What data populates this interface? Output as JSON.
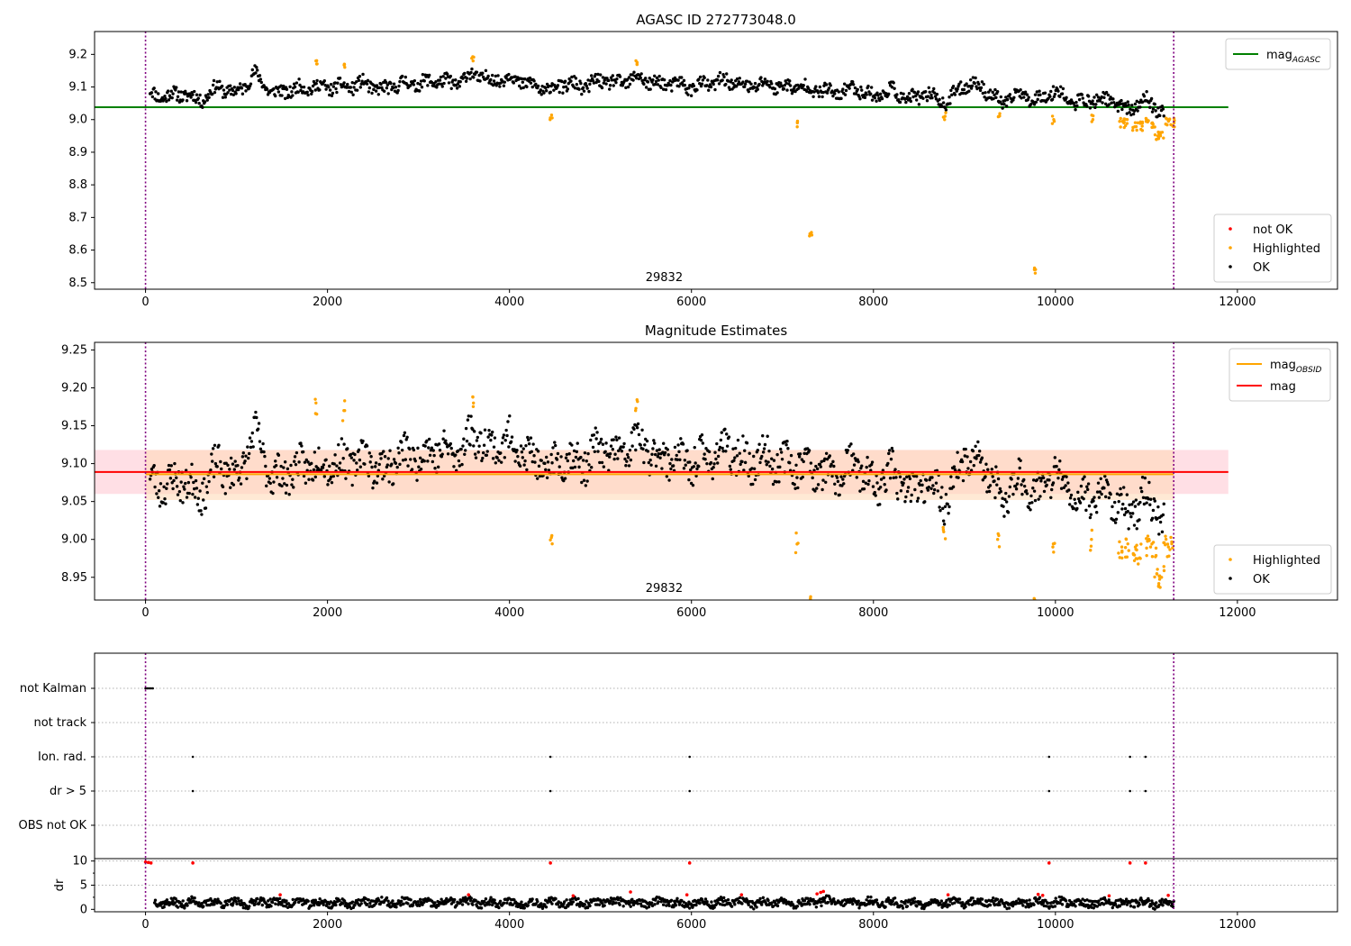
{
  "colors": {
    "ok": "#000000",
    "highlighted": "#ffa500",
    "not_ok": "#ff0000",
    "agasc_line": "#008000",
    "mag_line": "#ff0000",
    "obsid_line": "#ffa500",
    "obsid_band": "#ffdab9",
    "mag_band": "#ffc0cb",
    "vline": "#800080",
    "grid": "#b0b0b0"
  },
  "chart_data": [
    {
      "id": "agasc",
      "type": "scatter",
      "title": "AGASC ID 272773048.0",
      "xlim": [
        -560,
        13100
      ],
      "ylim": [
        8.48,
        9.27
      ],
      "xticks": [
        0,
        2000,
        4000,
        6000,
        8000,
        10000,
        12000
      ],
      "yticks": [
        8.5,
        8.6,
        8.7,
        8.8,
        8.9,
        9.0,
        9.1,
        9.2
      ],
      "ytick_labels": [
        "8.5",
        "8.6",
        "8.7",
        "8.8",
        "8.9",
        "9.0",
        "9.1",
        "9.2"
      ],
      "hline": {
        "label": "mag",
        "label_sub": "AGASC",
        "y": 9.038,
        "x": [
          -560,
          11900
        ]
      },
      "vlines": [
        0,
        11300
      ],
      "annotation": {
        "text": "29832",
        "x": 5700,
        "y": 8.51
      },
      "legend_lines": [
        {
          "label": "mag",
          "sub": "AGASC",
          "color": "#008000"
        }
      ],
      "legend_points": [
        {
          "label": "not OK",
          "color": "#ff0000"
        },
        {
          "label": "Highlighted",
          "color": "#ffa500"
        },
        {
          "label": "OK",
          "color": "#000000"
        }
      ],
      "series": [
        {
          "name": "OK",
          "color": "#000000",
          "x": [
            50,
            200,
            400,
            600,
            800,
            1000,
            1200,
            1400,
            1600,
            1800,
            2000,
            2200,
            2400,
            2600,
            2800,
            3000,
            3200,
            3400,
            3600,
            3800,
            4000,
            4200,
            4400,
            4600,
            4800,
            5000,
            5200,
            5400,
            5600,
            5800,
            6000,
            6200,
            6400,
            6600,
            6800,
            7000,
            7200,
            7400,
            7600,
            7800,
            8000,
            8200,
            8400,
            8600,
            8800,
            9000,
            9200,
            9400,
            9600,
            9800,
            10000,
            10200,
            10400,
            10600,
            10800,
            11000,
            11200
          ],
          "y": [
            9.08,
            9.07,
            9.08,
            9.06,
            9.1,
            9.08,
            9.14,
            9.08,
            9.09,
            9.1,
            9.1,
            9.1,
            9.11,
            9.09,
            9.11,
            9.11,
            9.12,
            9.11,
            9.14,
            9.12,
            9.13,
            9.11,
            9.09,
            9.11,
            9.1,
            9.12,
            9.11,
            9.13,
            9.11,
            9.11,
            9.1,
            9.11,
            9.12,
            9.1,
            9.11,
            9.1,
            9.1,
            9.09,
            9.08,
            9.1,
            9.07,
            9.09,
            9.06,
            9.08,
            9.05,
            9.11,
            9.1,
            9.05,
            9.08,
            9.06,
            9.09,
            9.05,
            9.06,
            9.06,
            9.03,
            9.06,
            9.02
          ]
        },
        {
          "name": "Highlighted",
          "color": "#ffa500",
          "x": [
            1880,
            2180,
            3600,
            4460,
            5400,
            7160,
            7310,
            8780,
            9380,
            9770,
            9980,
            10400,
            10750,
            10900,
            11050,
            11150,
            11250
          ],
          "y": [
            9.18,
            9.17,
            9.18,
            9.0,
            9.17,
            8.99,
            8.65,
            9.01,
            9.01,
            8.54,
            9.0,
            9.0,
            8.99,
            8.98,
            8.99,
            8.95,
            8.99
          ]
        }
      ]
    },
    {
      "id": "estimates",
      "type": "scatter",
      "title": "Magnitude Estimates",
      "xlim": [
        -560,
        13100
      ],
      "ylim": [
        8.92,
        9.26
      ],
      "xticks": [
        0,
        2000,
        4000,
        6000,
        8000,
        10000,
        12000
      ],
      "yticks": [
        8.95,
        9.0,
        9.05,
        9.1,
        9.15,
        9.2,
        9.25
      ],
      "ytick_labels": [
        "8.95",
        "9.00",
        "9.05",
        "9.10",
        "9.15",
        "9.20",
        "9.25"
      ],
      "mag_band": {
        "low": 9.06,
        "high": 9.118,
        "x": [
          -560,
          11900
        ]
      },
      "obsid_band": {
        "low": 9.052,
        "high": 9.118,
        "x": [
          0,
          11300
        ]
      },
      "mag_line": {
        "label": "mag",
        "y": 9.089,
        "x": [
          -560,
          11900
        ]
      },
      "obsid_line": {
        "label": "mag",
        "label_sub": "OBSID",
        "y": 9.086,
        "x": [
          0,
          11300
        ]
      },
      "vlines": [
        0,
        11300
      ],
      "annotation": {
        "text": "29832",
        "x": 5700,
        "y": 8.93
      },
      "legend_lines": [
        {
          "label": "mag",
          "sub": "OBSID",
          "color": "#ffa500"
        },
        {
          "label": "mag",
          "sub": "",
          "color": "#ff0000"
        }
      ],
      "legend_points": [
        {
          "label": "Highlighted",
          "color": "#ffa500"
        },
        {
          "label": "OK",
          "color": "#000000"
        }
      ],
      "series": [
        {
          "name": "OK",
          "color": "#000000",
          "x": [
            50,
            200,
            400,
            600,
            800,
            1000,
            1200,
            1400,
            1600,
            1800,
            2000,
            2200,
            2400,
            2600,
            2800,
            3000,
            3200,
            3400,
            3600,
            3800,
            4000,
            4200,
            4400,
            4600,
            4800,
            5000,
            5200,
            5400,
            5600,
            5800,
            6000,
            6200,
            6400,
            6600,
            6800,
            7000,
            7200,
            7400,
            7600,
            7800,
            8000,
            8200,
            8400,
            8600,
            8800,
            9000,
            9200,
            9400,
            9600,
            9800,
            10000,
            10200,
            10400,
            10600,
            10800,
            11000,
            11200
          ],
          "y": [
            9.08,
            9.07,
            9.08,
            9.06,
            9.1,
            9.08,
            9.14,
            9.08,
            9.09,
            9.1,
            9.1,
            9.1,
            9.11,
            9.09,
            9.11,
            9.11,
            9.12,
            9.11,
            9.14,
            9.12,
            9.13,
            9.11,
            9.09,
            9.11,
            9.1,
            9.12,
            9.11,
            9.13,
            9.11,
            9.11,
            9.1,
            9.11,
            9.12,
            9.1,
            9.11,
            9.1,
            9.1,
            9.09,
            9.08,
            9.1,
            9.07,
            9.09,
            9.06,
            9.08,
            9.05,
            9.11,
            9.1,
            9.05,
            9.08,
            9.06,
            9.09,
            9.05,
            9.06,
            9.06,
            9.03,
            9.06,
            9.02
          ]
        },
        {
          "name": "Highlighted",
          "color": "#ffa500",
          "x": [
            1880,
            2180,
            3600,
            4460,
            5400,
            7160,
            7310,
            8780,
            9380,
            9770,
            9980,
            10400,
            10750,
            10900,
            11050,
            11150,
            11250
          ],
          "y": [
            9.18,
            9.17,
            9.18,
            9.005,
            9.17,
            8.995,
            8.922,
            9.01,
            9.0,
            8.922,
            8.99,
            9.0,
            8.99,
            8.98,
            8.99,
            8.95,
            8.99
          ]
        }
      ]
    },
    {
      "id": "flags",
      "type": "scatter",
      "xlim": [
        -560,
        13100
      ],
      "categories": [
        "not Kalman",
        "not track",
        "Ion. rad.",
        "dr > 5",
        "OBS not OK"
      ],
      "vlines": [
        0,
        11300
      ],
      "flag_points": [
        {
          "category": "not Kalman",
          "x": [
            0,
            20,
            40,
            60,
            80
          ]
        },
        {
          "category": "Ion. rad.",
          "x": [
            520,
            4450,
            5980,
            9930,
            10820,
            10990
          ]
        },
        {
          "category": "dr > 5",
          "x": [
            520,
            4450,
            5980,
            9930,
            10820,
            10990
          ]
        }
      ]
    },
    {
      "id": "dr",
      "type": "scatter",
      "ylabel": "dr",
      "xlim": [
        -560,
        13100
      ],
      "ylim": [
        -0.5,
        10.5
      ],
      "xticks": [
        0,
        2000,
        4000,
        6000,
        8000,
        10000,
        12000
      ],
      "yticks": [
        0,
        5,
        10
      ],
      "ytick_labels": [
        "0",
        "5",
        "10"
      ],
      "vlines": [
        0,
        11300
      ],
      "series": [
        {
          "name": "OK",
          "color": "#000000",
          "x": [
            100,
            300,
            500,
            700,
            900,
            1100,
            1300,
            1500,
            1700,
            1900,
            2100,
            2300,
            2500,
            2700,
            2900,
            3100,
            3300,
            3500,
            3700,
            3900,
            4100,
            4300,
            4500,
            4700,
            4900,
            5100,
            5300,
            5500,
            5700,
            5900,
            6100,
            6300,
            6500,
            6700,
            6900,
            7100,
            7300,
            7500,
            7700,
            7900,
            8100,
            8300,
            8500,
            8700,
            8900,
            9100,
            9300,
            9500,
            9700,
            9900,
            10100,
            10300,
            10500,
            10700,
            10900,
            11100,
            11300
          ],
          "y": [
            1.6,
            1.2,
            1.5,
            1.3,
            1.4,
            1.1,
            1.7,
            1.3,
            1.5,
            1.2,
            1.4,
            1.1,
            1.6,
            1.3,
            1.5,
            1.2,
            1.4,
            1.6,
            1.3,
            1.5,
            1.2,
            1.4,
            1.3,
            1.5,
            1.2,
            1.6,
            1.4,
            1.3,
            1.5,
            1.2,
            1.4,
            1.3,
            1.6,
            1.2,
            1.5,
            1.3,
            1.4,
            1.7,
            1.2,
            1.5,
            1.3,
            1.4,
            1.2,
            1.6,
            1.3,
            1.5,
            1.4,
            1.2,
            1.6,
            1.3,
            1.5,
            1.2,
            1.4,
            1.3,
            1.5,
            1.2,
            1.4
          ]
        },
        {
          "name": "not OK",
          "color": "#ff0000",
          "x": [
            0,
            30,
            60,
            520,
            4450,
            5980,
            9930,
            10820,
            10990,
            1480,
            3550,
            4700,
            5330,
            5950,
            6550,
            7380,
            7420,
            7450,
            8820,
            9810,
            9860,
            10590,
            11240
          ],
          "y": [
            9.8,
            9.7,
            9.6,
            9.6,
            9.6,
            9.6,
            9.6,
            9.6,
            9.6,
            3.0,
            3.0,
            2.8,
            3.6,
            3.0,
            3.0,
            3.2,
            3.5,
            3.7,
            3.0,
            3.1,
            2.9,
            2.8,
            2.9
          ]
        }
      ]
    }
  ]
}
